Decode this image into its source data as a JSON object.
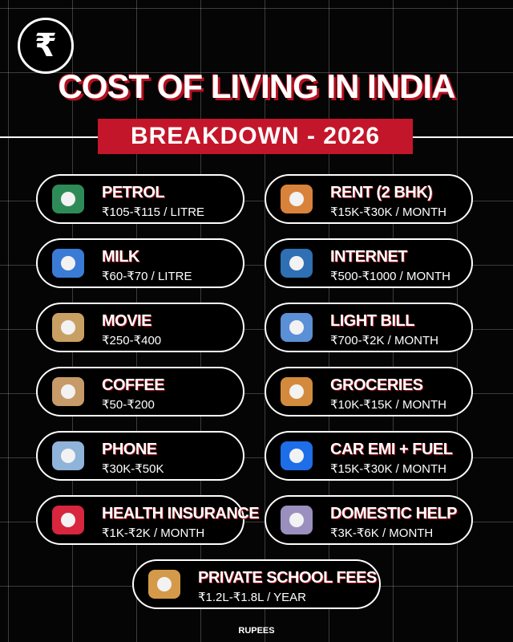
{
  "logo": "₹",
  "title": "COST OF LIVING IN INDIA",
  "subtitle": "BREAKDOWN - 2026",
  "items": [
    {
      "name": "PETROL",
      "price": "₹105-₹115 / LITRE"
    },
    {
      "name": "RENT (2 BHK)",
      "price": "₹15K-₹30K / MONTH"
    },
    {
      "name": "MILK",
      "price": "₹60-₹70 / LITRE"
    },
    {
      "name": "INTERNET",
      "price": "₹500-₹1000 / MONTH"
    },
    {
      "name": "MOVIE",
      "price": "₹250-₹400"
    },
    {
      "name": "LIGHT BILL",
      "price": "₹700-₹2K / MONTH"
    },
    {
      "name": "COFFEE",
      "price": "₹50-₹200"
    },
    {
      "name": "GROCERIES",
      "price": "₹10K-₹15K / MONTH"
    },
    {
      "name": "PHONE",
      "price": "₹30K-₹50K"
    },
    {
      "name": "CAR EMI + FUEL",
      "price": "₹15K-₹30K / MONTH"
    },
    {
      "name": "HEALTH INSURANCE",
      "price": "₹1K-₹2K / MONTH"
    },
    {
      "name": "DOMESTIC HELP",
      "price": "₹3K-₹6K / MONTH"
    },
    {
      "name": "PRIVATE SCHOOL FEES",
      "price": "₹1.2L-₹1.8L / YEAR"
    }
  ],
  "footer": "RUPEES"
}
